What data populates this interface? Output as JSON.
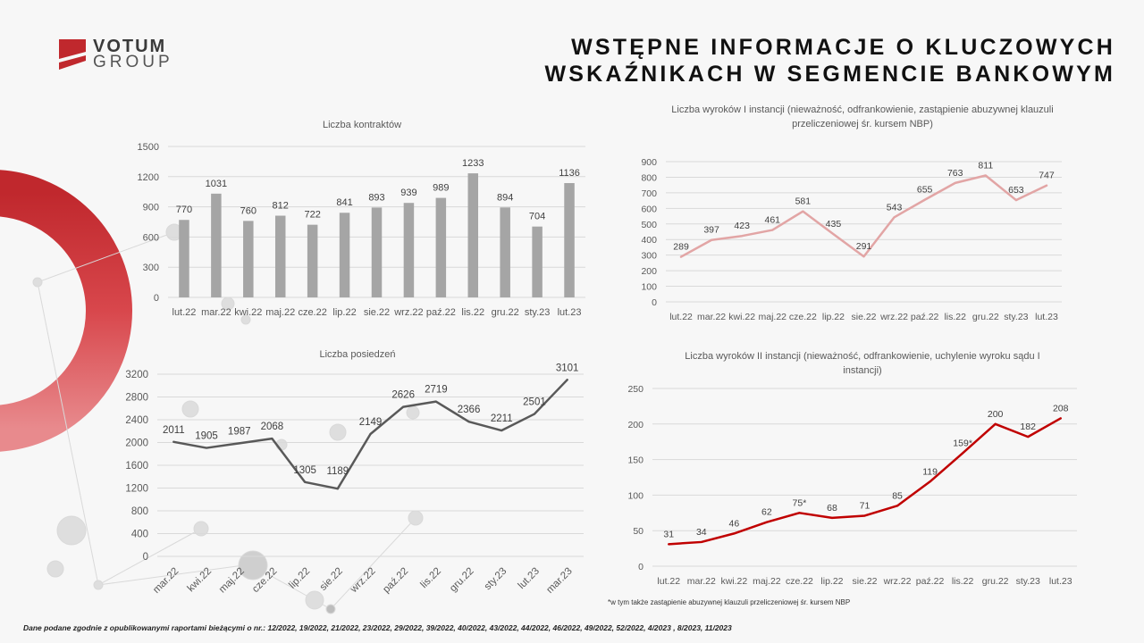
{
  "logo": {
    "line1": "VOTUM",
    "line2": "GROUP"
  },
  "title": {
    "line1": "WSTĘPNE INFORMACJE O KLUCZOWYCH",
    "line2": "WSKAŹNIKACH W SEGMENCIE BANKOWYM"
  },
  "colors": {
    "gray_bar": "#a5a5a5",
    "dark_line": "#595959",
    "pink_line": "#e2a5a5",
    "red_line": "#c00000",
    "red_brand": "#c0282d"
  },
  "note": "*w tym także zastąpienie abuzywnej klauzuli przeliczeniowej śr. kursem NBP",
  "footer": "Dane podane zgodnie z opublikowanymi raportami bieżącymi o nr.: 12/2022, 19/2022, 21/2022, 23/2022, 29/2022, 39/2022, 40/2022, 43/2022, 44/2022, 46/2022, 49/2022, 52/2022, 4/2023 , 8/2023, 11/2023",
  "chart_data": [
    {
      "id": "kontrakty",
      "type": "bar",
      "title": "Liczba kontraktów",
      "categories": [
        "lut.22",
        "mar.22",
        "kwi.22",
        "maj.22",
        "cze.22",
        "lip.22",
        "sie.22",
        "wrz.22",
        "paź.22",
        "lis.22",
        "gru.22",
        "sty.23",
        "lut.23"
      ],
      "values": [
        770,
        1031,
        760,
        812,
        722,
        841,
        893,
        939,
        989,
        1233,
        894,
        704,
        1136
      ],
      "labels": [
        "770",
        "1031",
        "760",
        "812",
        "722",
        "841",
        "893",
        "939",
        "989",
        "1233",
        "894",
        "704",
        "1136"
      ],
      "ylim": [
        0,
        1500
      ],
      "yticks": [
        "0",
        "300",
        "600",
        "900",
        "1200",
        "1500"
      ],
      "grid": true
    },
    {
      "id": "wyroki1",
      "type": "line",
      "title_lines": [
        "Liczba wyroków I instancji (nieważność, odfrankowienie, zastąpienie abuzywnej klauzuli",
        "przeliczeniowej śr. kursem NBP)"
      ],
      "categories": [
        "lut.22",
        "mar.22",
        "kwi.22",
        "maj.22",
        "cze.22",
        "lip.22",
        "sie.22",
        "wrz.22",
        "paź.22",
        "lis.22",
        "gru.22",
        "sty.23",
        "lut.23"
      ],
      "values": [
        289,
        397,
        423,
        461,
        581,
        435,
        291,
        543,
        655,
        763,
        811,
        653,
        747
      ],
      "labels": [
        "289",
        "397",
        "423",
        "461",
        "581",
        "435",
        "291",
        "543",
        "655",
        "763",
        "811",
        "653",
        "747"
      ],
      "ylim": [
        0,
        900
      ],
      "yticks": [
        "0",
        "100",
        "200",
        "300",
        "400",
        "500",
        "600",
        "700",
        "800",
        "900"
      ],
      "grid": true
    },
    {
      "id": "posiedzenia",
      "type": "line",
      "title": "Liczba posiedzeń",
      "categories": [
        "mar.22",
        "kwi.22",
        "maj.22",
        "cze.22",
        "lip.22",
        "sie.22",
        "wrz.22",
        "paź.22",
        "lis.22",
        "gru.22",
        "sty.23",
        "lut.23",
        "mar.23"
      ],
      "values": [
        2011,
        1905,
        1987,
        2068,
        1305,
        1189,
        2149,
        2626,
        2719,
        2366,
        2211,
        2501,
        3101
      ],
      "labels": [
        "2011",
        "1905",
        "1987",
        "2068",
        "1305",
        "1189",
        "2149",
        "2626",
        "2719",
        "2366",
        "2211",
        "2501",
        "3101"
      ],
      "ylim": [
        0,
        3200
      ],
      "yticks": [
        "0",
        "400",
        "800",
        "1200",
        "1600",
        "2000",
        "2400",
        "2800",
        "3200"
      ],
      "grid": true
    },
    {
      "id": "wyroki2",
      "type": "line",
      "title_lines": [
        "Liczba wyroków II instancji (nieważność, odfrankowienie, uchylenie wyroku sądu I",
        "instancji)"
      ],
      "categories": [
        "lut.22",
        "mar.22",
        "kwi.22",
        "maj.22",
        "cze.22",
        "lip.22",
        "sie.22",
        "wrz.22",
        "paź.22",
        "lis.22",
        "gru.22",
        "sty.23",
        "lut.23"
      ],
      "values": [
        31,
        34,
        46,
        62,
        75,
        68,
        71,
        85,
        119,
        159,
        200,
        182,
        208
      ],
      "labels": [
        "31",
        "34",
        "46",
        "62",
        "75*",
        "68",
        "71",
        "85",
        "119",
        "159*",
        "200",
        "182",
        "208"
      ],
      "ylim": [
        0,
        250
      ],
      "yticks": [
        "0",
        "50",
        "100",
        "150",
        "200",
        "250"
      ],
      "grid": true
    }
  ]
}
